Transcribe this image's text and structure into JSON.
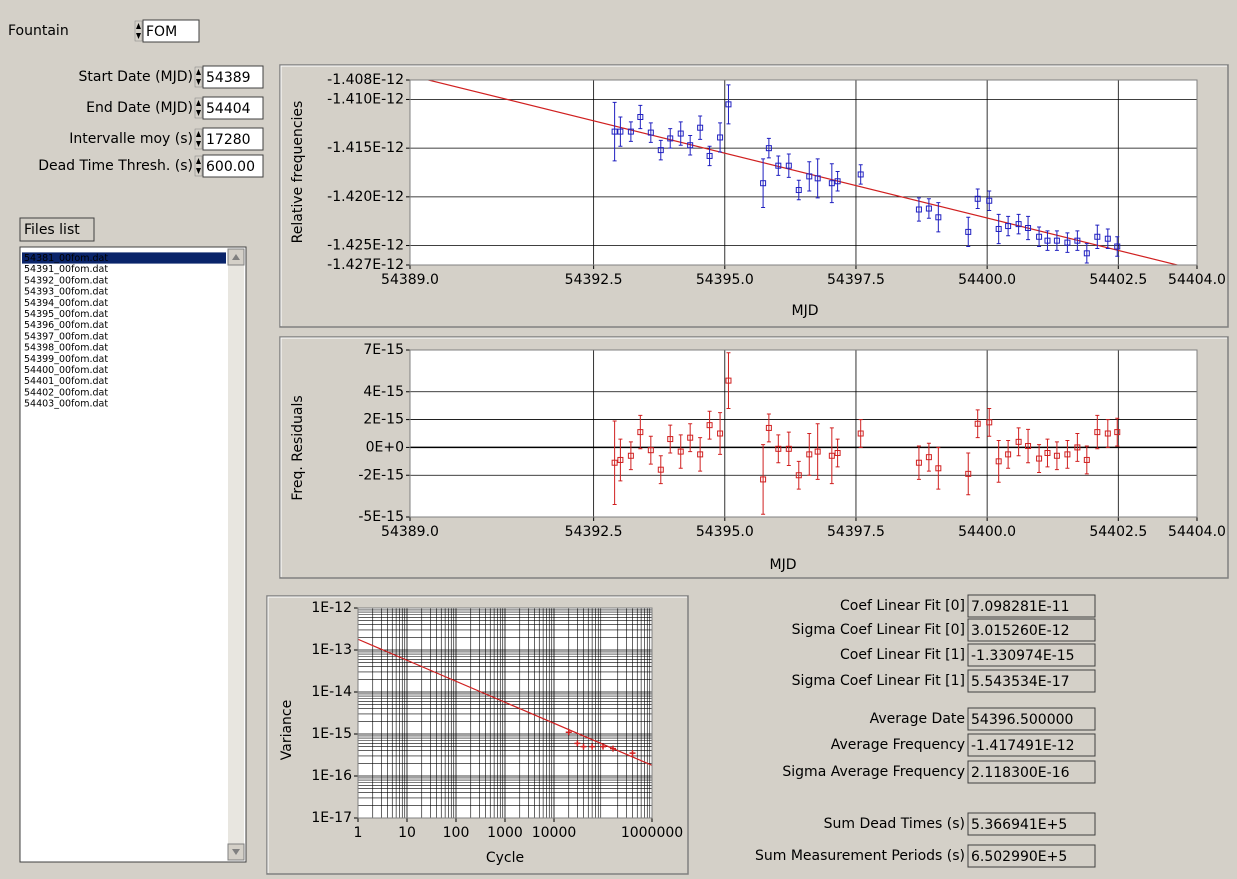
{
  "fountain": {
    "label": "Fountain",
    "value": "FOM"
  },
  "parameters": [
    {
      "label": "Start Date (MJD)",
      "value": "54389"
    },
    {
      "label": "End Date (MJD)",
      "value": "54404"
    },
    {
      "label": "Intervalle moy (s)",
      "value": "17280"
    },
    {
      "label": "Dead Time Thresh. (s)",
      "value": "600.00"
    }
  ],
  "files_list": {
    "title": "Files list",
    "selected": 0,
    "items": [
      "54381_00fom.dat",
      "54391_00fom.dat",
      "54392_00fom.dat",
      "54393_00fom.dat",
      "54394_00fom.dat",
      "54395_00fom.dat",
      "54396_00fom.dat",
      "54397_00fom.dat",
      "54398_00fom.dat",
      "54399_00fom.dat",
      "54400_00fom.dat",
      "54401_00fom.dat",
      "54402_00fom.dat",
      "54403_00fom.dat"
    ]
  },
  "chart_data": [
    {
      "type": "scatter",
      "xlabel": "MJD",
      "ylabel": "Relative frequencies",
      "color": "#2020c0",
      "fit": true,
      "fit_color": "#d02020",
      "grid": true,
      "xlim": [
        54389,
        54404
      ],
      "ylim": [
        -1.427e-12,
        -1.408e-12
      ],
      "xticks": [
        {
          "value": 54389,
          "label": "54389.0"
        },
        {
          "value": 54392.5,
          "label": "54392.5"
        },
        {
          "value": 54395,
          "label": "54395.0"
        },
        {
          "value": 54397.5,
          "label": "54397.5"
        },
        {
          "value": 54400,
          "label": "54400.0"
        },
        {
          "value": 54402.5,
          "label": "54402.5"
        },
        {
          "value": 54404,
          "label": "54404.0"
        }
      ],
      "yticks": [
        {
          "value": -1.408e-12,
          "label": "-1.408E-12"
        },
        {
          "value": -1.41e-12,
          "label": "-1.410E-12"
        },
        {
          "value": -1.415e-12,
          "label": "-1.415E-12"
        },
        {
          "value": -1.42e-12,
          "label": "-1.420E-12"
        },
        {
          "value": -1.425e-12,
          "label": "-1.425E-12"
        },
        {
          "value": -1.427e-12,
          "label": "-1.427E-12"
        }
      ],
      "x": [
        54392.9,
        54393.01,
        54393.21,
        54393.39,
        54393.59,
        54393.78,
        54393.96,
        54394.16,
        54394.34,
        54394.53,
        54394.71,
        54394.91,
        54395.07,
        54395.73,
        54395.84,
        54396.02,
        54396.22,
        54396.41,
        54396.61,
        54396.77,
        54397.04,
        54397.15,
        54397.59,
        54398.7,
        54398.89,
        54399.07,
        54399.64,
        54399.82,
        54400.04,
        54400.22,
        54400.4,
        54400.6,
        54400.78,
        54400.99,
        54401.15,
        54401.33,
        54401.53,
        54401.72,
        54401.9,
        54402.1,
        54402.3,
        54402.48
      ],
      "values": [
        -1.4133e-12,
        -1.4133e-12,
        -1.4133e-12,
        -1.4118e-12,
        -1.4134e-12,
        -1.4152e-12,
        -1.414e-12,
        -1.4135e-12,
        -1.4147e-12,
        -1.4129e-12,
        -1.4158e-12,
        -1.4139e-12,
        -1.4105e-12,
        -1.4186e-12,
        -1.415e-12,
        -1.4168e-12,
        -1.4168e-12,
        -1.4193e-12,
        -1.4179e-12,
        -1.4181e-12,
        -1.4186e-12,
        -1.4184e-12,
        -1.4177e-12,
        -1.4213e-12,
        -1.4212e-12,
        -1.4221e-12,
        -1.4236e-12,
        -1.4202e-12,
        -1.4204e-12,
        -1.4233e-12,
        -1.423e-12,
        -1.4228e-12,
        -1.4232e-12,
        -1.4241e-12,
        -1.4245e-12,
        -1.4245e-12,
        -1.4247e-12,
        -1.4245e-12,
        -1.4258e-12,
        -1.4241e-12,
        -1.4243e-12,
        -1.4251e-12
      ],
      "errors": [
        3e-15,
        1.5e-15,
        1e-15,
        1.2e-15,
        1e-15,
        1e-15,
        1e-15,
        1.2e-15,
        1e-15,
        1.2e-15,
        1e-15,
        1.5e-15,
        2e-15,
        2.5e-15,
        1e-15,
        1e-15,
        1.2e-15,
        1e-15,
        1.5e-15,
        2e-15,
        2e-15,
        1e-15,
        1e-15,
        1.2e-15,
        1e-15,
        1.5e-15,
        1.5e-15,
        1e-15,
        1e-15,
        1.5e-15,
        1e-15,
        1e-15,
        1.2e-15,
        1e-15,
        1e-15,
        1e-15,
        1e-15,
        1e-15,
        1e-15,
        1.2e-15,
        1e-15,
        1e-15
      ]
    },
    {
      "type": "scatter",
      "xlabel": "MJD",
      "ylabel": "Freq. Residuals",
      "color": "#d02020",
      "grid": true,
      "xlim": [
        54389,
        54404
      ],
      "ylim": [
        -5e-15,
        7e-15
      ],
      "xticks": [
        {
          "value": 54389,
          "label": "54389.0"
        },
        {
          "value": 54392.5,
          "label": "54392.5"
        },
        {
          "value": 54395,
          "label": "54395.0"
        },
        {
          "value": 54397.5,
          "label": "54397.5"
        },
        {
          "value": 54400,
          "label": "54400.0"
        },
        {
          "value": 54402.5,
          "label": "54402.5"
        },
        {
          "value": 54404,
          "label": "54404.0"
        }
      ],
      "yticks": [
        {
          "value": 7e-15,
          "label": "7E-15"
        },
        {
          "value": 4e-15,
          "label": "4E-15"
        },
        {
          "value": 2e-15,
          "label": "2E-15"
        },
        {
          "value": 0,
          "label": "0E+0"
        },
        {
          "value": -2e-15,
          "label": "-2E-15"
        },
        {
          "value": -5e-15,
          "label": "-5E-15"
        }
      ],
      "x": [
        54392.9,
        54393.01,
        54393.21,
        54393.39,
        54393.59,
        54393.78,
        54393.96,
        54394.16,
        54394.34,
        54394.53,
        54394.71,
        54394.91,
        54395.07,
        54395.73,
        54395.84,
        54396.02,
        54396.22,
        54396.41,
        54396.61,
        54396.77,
        54397.04,
        54397.15,
        54397.59,
        54398.7,
        54398.89,
        54399.07,
        54399.64,
        54399.82,
        54400.04,
        54400.22,
        54400.4,
        54400.6,
        54400.78,
        54400.99,
        54401.15,
        54401.33,
        54401.53,
        54401.72,
        54401.9,
        54402.1,
        54402.3,
        54402.48
      ],
      "values": [
        -1.1e-15,
        -9e-16,
        -6e-16,
        1.1e-15,
        -2e-16,
        -1.6e-15,
        6e-16,
        -3e-16,
        7e-16,
        -5e-16,
        1.6e-15,
        1e-15,
        4.8e-15,
        -2.3e-15,
        1.4e-15,
        -1e-16,
        -1e-16,
        -2e-15,
        -5e-16,
        -3e-16,
        -6e-16,
        -4e-16,
        1e-15,
        -1.1e-15,
        -7e-16,
        -1.5e-15,
        -1.9e-15,
        1.7e-15,
        1.8e-15,
        -1e-15,
        -5e-16,
        4e-16,
        1e-16,
        -8e-16,
        -4e-16,
        -6e-16,
        -5e-16,
        0.0,
        -9e-16,
        1.1e-15,
        1e-15,
        1.1e-15
      ],
      "errors": [
        3e-15,
        1.5e-15,
        1e-15,
        1.2e-15,
        1e-15,
        1e-15,
        1e-15,
        1.2e-15,
        1e-15,
        1.2e-15,
        1e-15,
        1.5e-15,
        2e-15,
        2.5e-15,
        1e-15,
        1e-15,
        1.2e-15,
        1e-15,
        1.5e-15,
        2e-15,
        2e-15,
        1e-15,
        1e-15,
        1.2e-15,
        1e-15,
        1.5e-15,
        1.5e-15,
        1e-15,
        1e-15,
        1.5e-15,
        1e-15,
        1e-15,
        1.2e-15,
        1e-15,
        1e-15,
        1e-15,
        1e-15,
        1e-15,
        1e-15,
        1.2e-15,
        1e-15,
        1e-15
      ]
    },
    {
      "type": "scatter",
      "xlabel": "Cycle",
      "ylabel": "Variance",
      "color": "#d02020",
      "grid": true,
      "minor_grid": true,
      "xscale": "log",
      "yscale": "log",
      "xlim": [
        1,
        1000000
      ],
      "ylim": [
        1e-17,
        1e-12
      ],
      "xticks": [
        1,
        10,
        100,
        1000,
        10000,
        1000000
      ],
      "yticks": [
        {
          "value": 1e-12,
          "label": "1E-12"
        },
        {
          "value": 1e-13,
          "label": "1E-13"
        },
        {
          "value": 1e-14,
          "label": "1E-14"
        },
        {
          "value": 1e-15,
          "label": "1E-15"
        },
        {
          "value": 1e-16,
          "label": "1E-16"
        },
        {
          "value": 1e-17,
          "label": "1E-17"
        }
      ],
      "x": [
        20000,
        30000,
        40000,
        60000,
        100000,
        160000,
        400000
      ],
      "values": [
        1.1e-15,
        6e-16,
        5e-16,
        5e-16,
        5e-16,
        4.5e-16,
        3.5e-16
      ],
      "line": {
        "x": [
          1,
          1000000
        ],
        "values": [
          1.8e-13,
          1.8e-16
        ]
      }
    }
  ],
  "results": [
    {
      "label": "Coef Linear Fit [0]",
      "value": "7.098281E-11"
    },
    {
      "label": "Sigma Coef Linear Fit [0]",
      "value": "3.015260E-12"
    },
    {
      "label": "Coef Linear Fit [1]",
      "value": "-1.330974E-15"
    },
    {
      "label": "Sigma Coef Linear Fit [1]",
      "value": "5.543534E-17"
    },
    {
      "label": "Average Date",
      "value": "54396.500000"
    },
    {
      "label": "Average Frequency",
      "value": "-1.417491E-12"
    },
    {
      "label": "Sigma Average Frequency",
      "value": "2.118300E-16"
    },
    {
      "label": "Sum Dead Times (s)",
      "value": "5.366941E+5"
    },
    {
      "label": "Sum Measurement Periods (s)",
      "value": "6.502990E+5"
    }
  ]
}
